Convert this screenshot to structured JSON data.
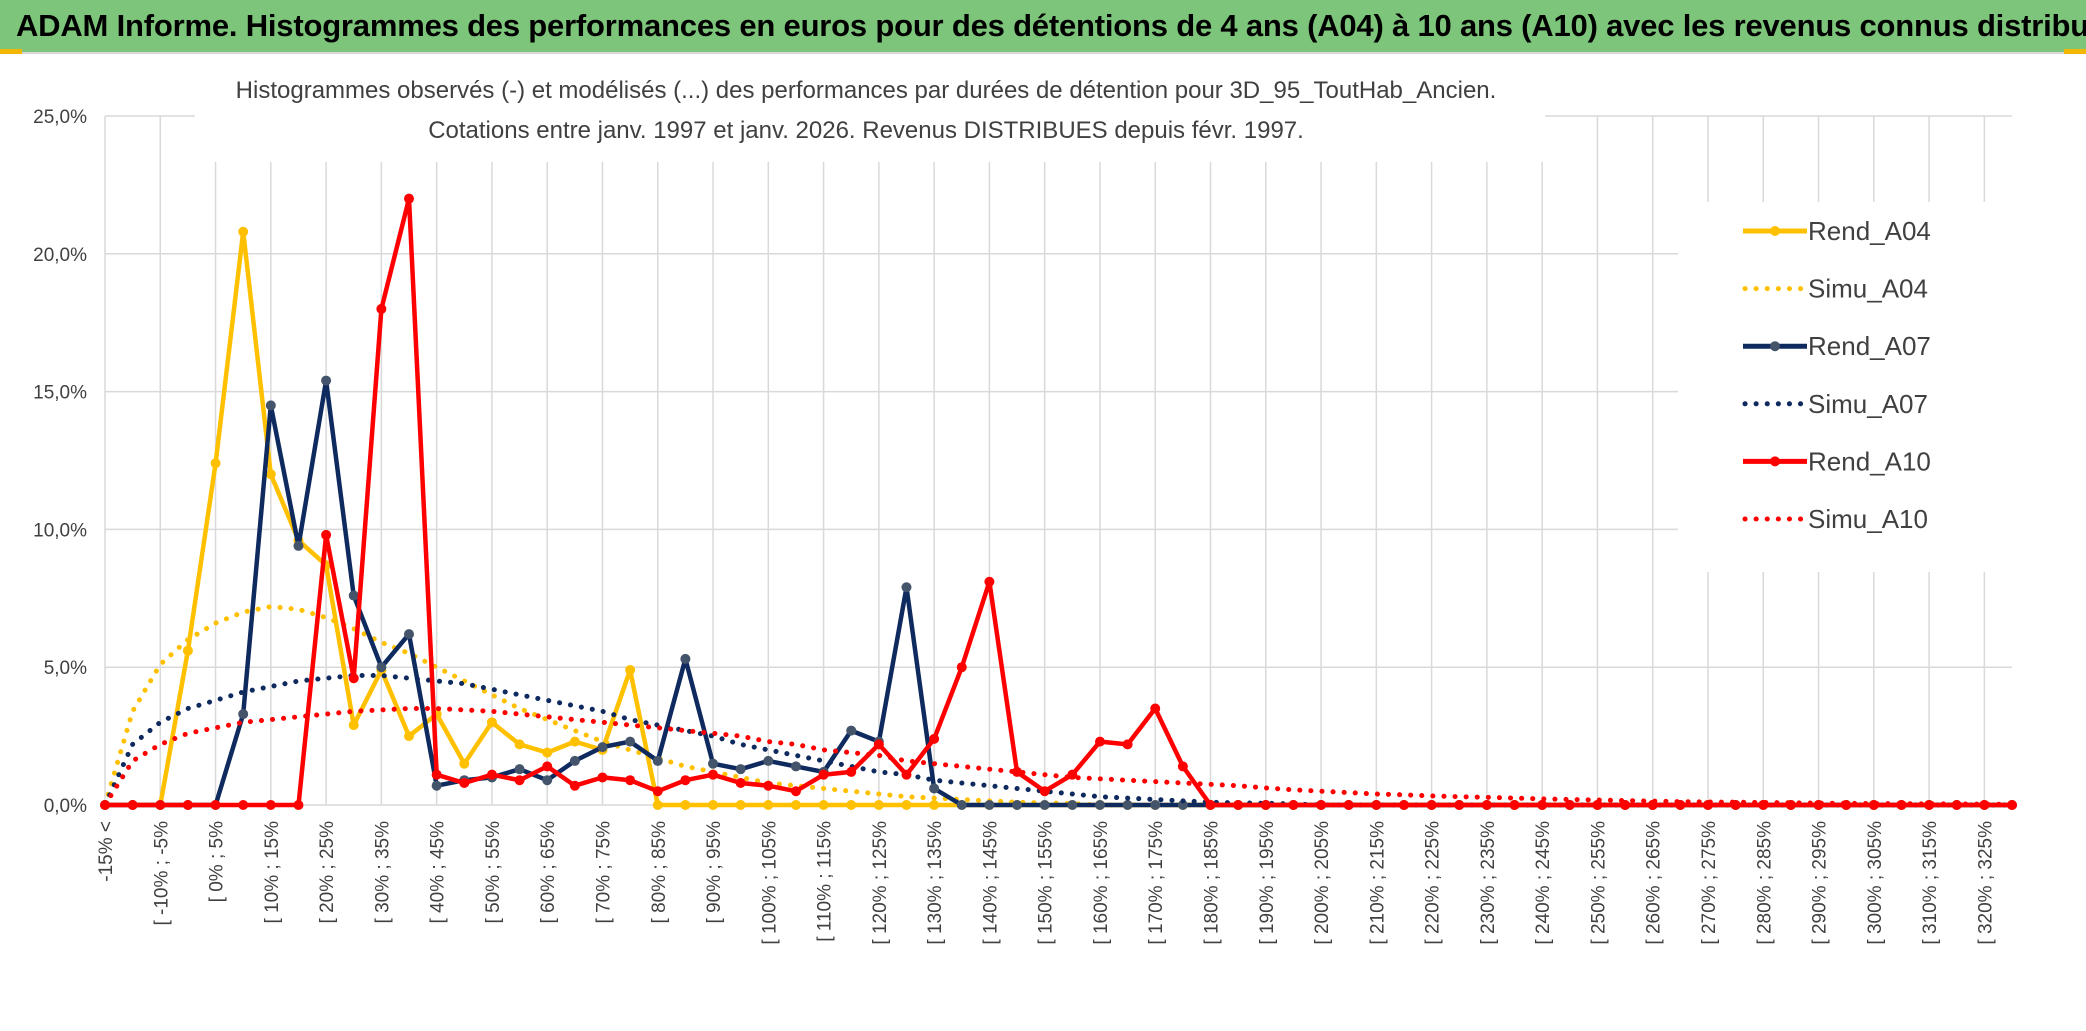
{
  "banner": {
    "title": "ADAM Informe. Histogrammes des performances en euros pour des détentions de 4 ans (A04) à 10 ans (A10) avec les revenus connus distribués",
    "color": "#7dc57a"
  },
  "chart_data": {
    "type": "line",
    "title_line1": "Histogrammes observés (-) et modélisés (...) des performances par durées de détention pour 3D_95_ToutHab_Ancien.",
    "title_line2": "Cotations entre janv. 1997 et janv. 2026. Revenus DISTRIBUES depuis févr. 1997.",
    "ylim": [
      0,
      25
    ],
    "yticks": [
      0,
      5,
      10,
      15,
      20,
      25
    ],
    "ytick_labels": [
      "0,0%",
      "5,0%",
      "10,0%",
      "15,0%",
      "20,0%",
      "25,0%"
    ],
    "grid": true,
    "legend_position": "right",
    "x_tick_labels": [
      "-15% <",
      "[ -10% ; -5%",
      "[ 0% ; 5%",
      "[ 10% ; 15%",
      "[ 20% ; 25%",
      "[ 30% ; 35%",
      "[ 40% ; 45%",
      "[ 50% ; 55%",
      "[ 60% ; 65%",
      "[ 70% ; 75%",
      "[ 80% ; 85%",
      "[ 90% ; 95%",
      "[ 100% ; 105%",
      "[ 110% ; 115%",
      "[ 120% ; 125%",
      "[ 130% ; 135%",
      "[ 140% ; 145%",
      "[ 150% ; 155%",
      "[ 160% ; 165%",
      "[ 170% ; 175%",
      "[ 180% ; 185%",
      "[ 190% ; 195%",
      "[ 200% ; 205%",
      "[ 210% ; 215%",
      "[ 220% ; 225%",
      "[ 230% ; 235%",
      "[ 240% ; 245%",
      "[ 250% ; 255%",
      "[ 260% ; 265%",
      "[ 270% ; 275%",
      "[ 280% ; 285%",
      "[ 290% ; 295%",
      "[ 300% ; 305%",
      "[ 310% ; 315%",
      "[ 320% ; 325%"
    ],
    "series": [
      {
        "name": "Rend_A04",
        "style": "solid",
        "color": "#ffc000",
        "values": [
          0,
          0,
          0,
          5.6,
          12.4,
          20.8,
          12.0,
          9.6,
          8.7,
          2.9,
          4.9,
          2.5,
          3.3,
          1.5,
          3.0,
          2.2,
          1.9,
          2.3,
          2.0,
          4.9,
          0,
          0,
          0,
          0,
          0,
          0,
          0,
          0,
          0,
          0,
          0,
          0,
          0
        ]
      },
      {
        "name": "Simu_A04",
        "style": "dotted",
        "color": "#ffc000",
        "values": [
          0,
          3.4,
          5.1,
          6.0,
          6.6,
          7.0,
          7.2,
          7.1,
          6.8,
          6.4,
          5.9,
          5.5,
          5.0,
          4.5,
          4.0,
          3.5,
          3.1,
          2.7,
          2.3,
          2.0,
          1.7,
          1.4,
          1.2,
          1.0,
          0.8,
          0.7,
          0.6,
          0.5,
          0.4,
          0.3,
          0.25,
          0.2,
          0.15,
          0.1,
          0.08,
          0.05
        ]
      },
      {
        "name": "Rend_A07",
        "style": "solid",
        "color": "#0f2a5e",
        "values": [
          0,
          0,
          0,
          0,
          0,
          3.3,
          14.5,
          9.4,
          15.4,
          7.6,
          5.0,
          6.2,
          0.7,
          0.9,
          1.0,
          1.3,
          0.9,
          1.6,
          2.1,
          2.3,
          1.6,
          5.3,
          1.5,
          1.3,
          1.6,
          1.4,
          1.2,
          2.7,
          2.3,
          7.9,
          0.6,
          0,
          0,
          0,
          0,
          0,
          0,
          0,
          0,
          0,
          0,
          0
        ]
      },
      {
        "name": "Simu_A07",
        "style": "dotted",
        "color": "#0f2a5e",
        "values": [
          0,
          2.2,
          3.0,
          3.5,
          3.8,
          4.1,
          4.3,
          4.5,
          4.6,
          4.7,
          4.7,
          4.6,
          4.5,
          4.4,
          4.2,
          4.0,
          3.8,
          3.6,
          3.4,
          3.1,
          2.9,
          2.7,
          2.5,
          2.2,
          2.0,
          1.8,
          1.6,
          1.4,
          1.2,
          1.1,
          0.9,
          0.8,
          0.7,
          0.6,
          0.5,
          0.4,
          0.3,
          0.25,
          0.2,
          0.15,
          0.1,
          0.08,
          0.06,
          0.04
        ]
      },
      {
        "name": "Rend_A10",
        "style": "solid",
        "color": "#ff0000",
        "values": [
          0,
          0,
          0,
          0,
          0,
          0,
          0,
          0,
          9.8,
          4.6,
          18.0,
          22.0,
          1.1,
          0.8,
          1.1,
          0.9,
          1.4,
          0.7,
          1.0,
          0.9,
          0.5,
          0.9,
          1.1,
          0.8,
          0.7,
          0.5,
          1.1,
          1.2,
          2.2,
          1.1,
          2.4,
          5.0,
          8.1,
          1.2,
          0.5,
          1.1,
          2.3,
          2.2,
          3.5,
          1.4,
          0,
          0,
          0,
          0,
          0,
          0,
          0,
          0,
          0,
          0,
          0,
          0,
          0,
          0,
          0,
          0,
          0,
          0,
          0,
          0,
          0,
          0,
          0,
          0,
          0,
          0,
          0,
          0,
          0,
          0
        ]
      },
      {
        "name": "Simu_A10",
        "style": "dotted",
        "color": "#ff0000",
        "values": [
          0,
          1.6,
          2.2,
          2.6,
          2.8,
          3.0,
          3.1,
          3.2,
          3.3,
          3.4,
          3.45,
          3.5,
          3.5,
          3.45,
          3.4,
          3.3,
          3.2,
          3.1,
          3.0,
          2.9,
          2.8,
          2.7,
          2.6,
          2.5,
          2.3,
          2.2,
          2.0,
          1.9,
          1.8,
          1.6,
          1.5,
          1.4,
          1.3,
          1.2,
          1.1,
          1.0,
          0.95,
          0.9,
          0.85,
          0.8,
          0.75,
          0.7,
          0.62,
          0.55,
          0.5,
          0.45,
          0.4,
          0.37,
          0.33,
          0.3,
          0.28,
          0.25,
          0.22,
          0.2,
          0.18,
          0.16,
          0.14,
          0.12,
          0.11,
          0.1,
          0.09,
          0.08,
          0.07,
          0.06,
          0.05,
          0.05,
          0.04,
          0.04,
          0.03,
          0.03
        ]
      }
    ]
  }
}
